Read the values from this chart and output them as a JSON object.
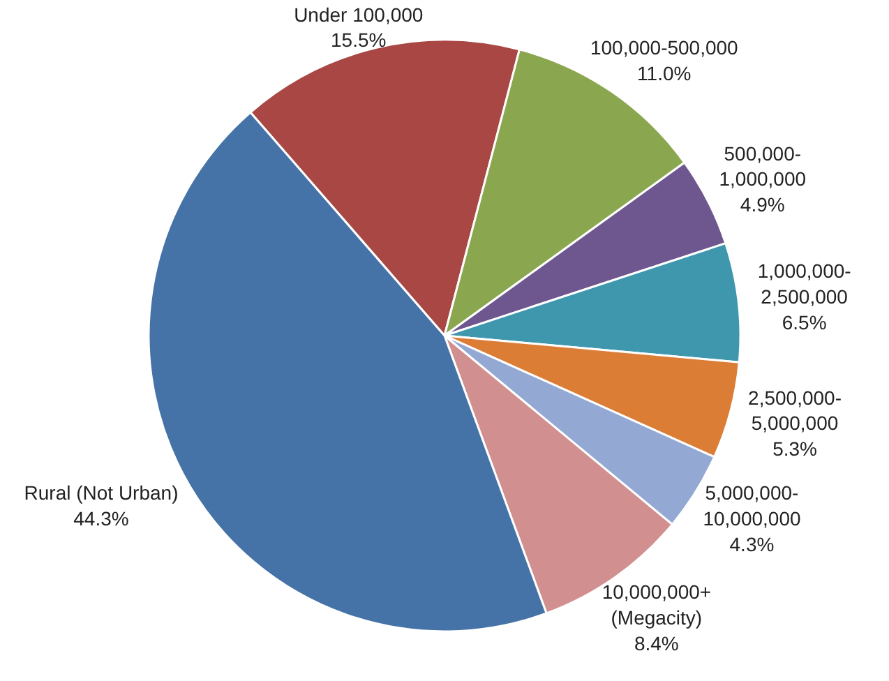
{
  "chart_data": {
    "type": "pie",
    "categories": [
      "Under 100,000",
      "100,000-500,000",
      "500,000-\n1,000,000",
      "1,000,000-\n2,500,000",
      "2,500,000-\n5,000,000",
      "5,000,000-\n10,000,000",
      "10,000,000+\n(Megacity)",
      "Rural (Not Urban)"
    ],
    "values": [
      15.5,
      11.0,
      4.9,
      6.5,
      5.3,
      4.3,
      8.4,
      44.3
    ],
    "value_labels": [
      "15.5%",
      "11.0%",
      "4.9%",
      "6.5%",
      "5.3%",
      "4.3%",
      "8.4%",
      "44.3%"
    ],
    "colors": [
      "#a84744",
      "#8aa64e",
      "#6e568e",
      "#3f97ae",
      "#dc7d36",
      "#93a8d3",
      "#d28f8f",
      "#4573a7"
    ]
  }
}
